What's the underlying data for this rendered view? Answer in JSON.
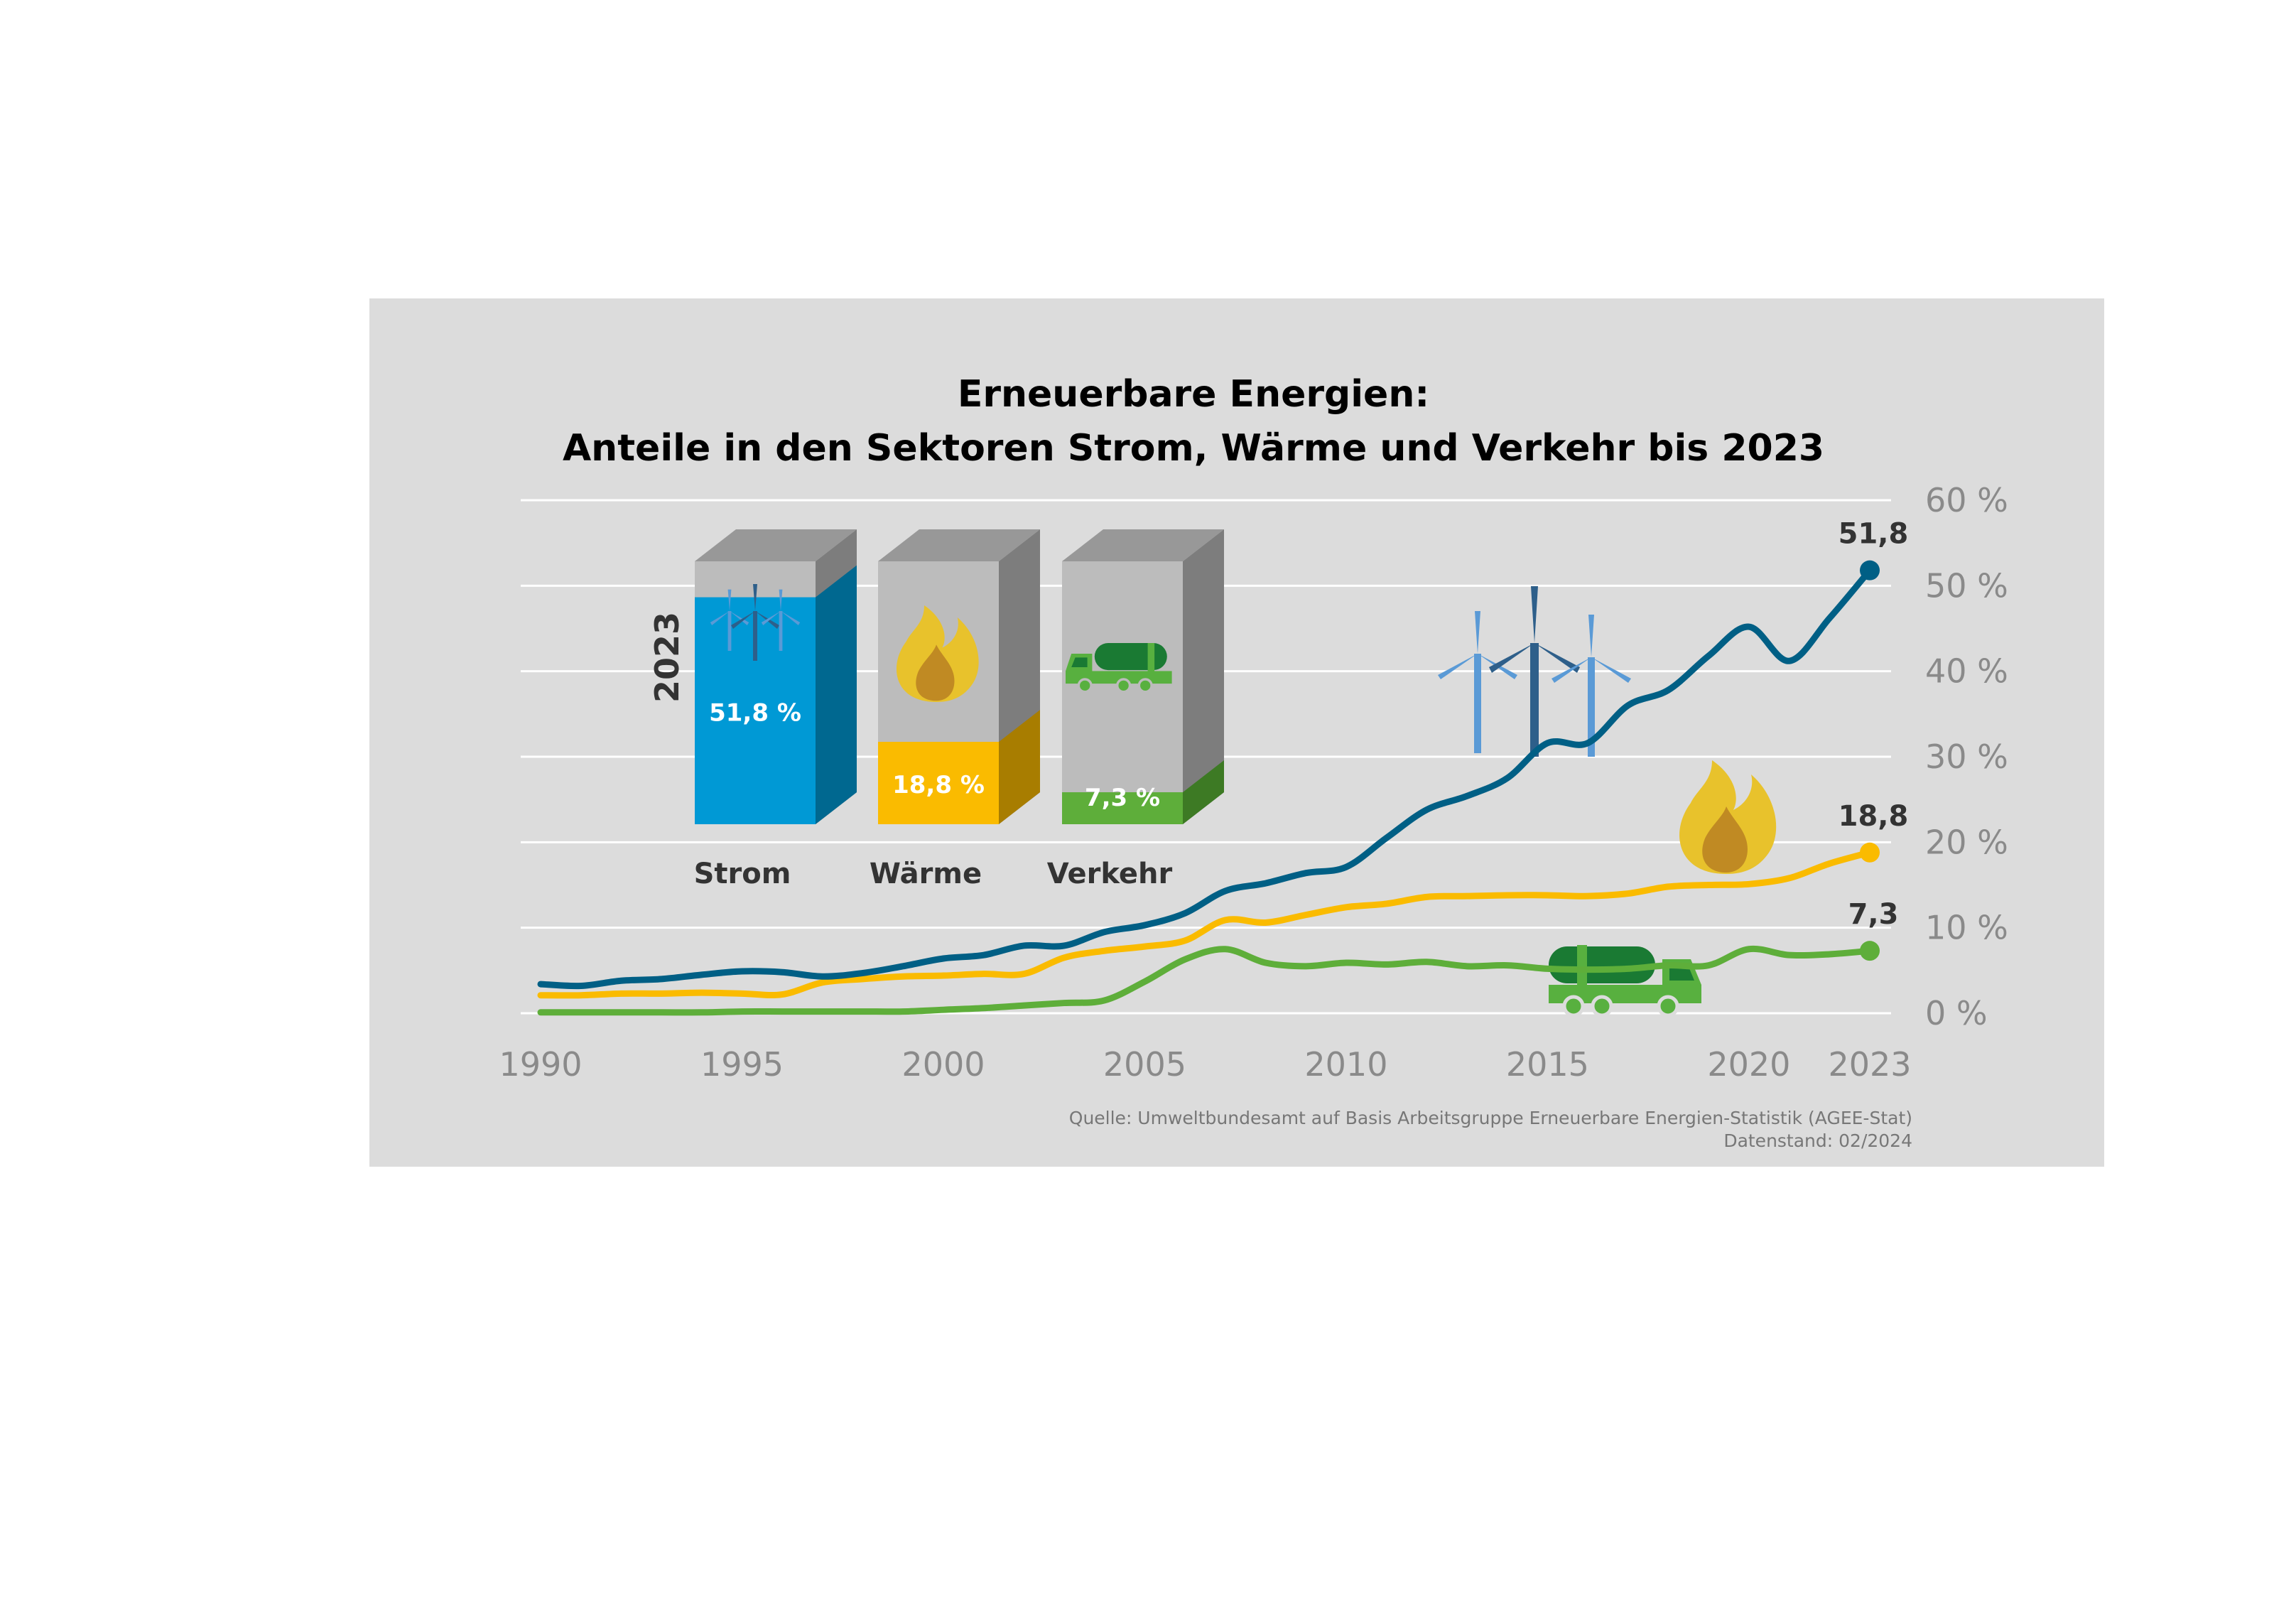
{
  "chart_data": {
    "type": "line",
    "title_line1": "Erneuerbare Energien:",
    "title_line2": "Anteile in den Sektoren Strom, Wärme und Verkehr bis 2023",
    "xlabel": "",
    "ylabel": "",
    "xlim": [
      1990,
      2023
    ],
    "ylim": [
      0,
      60
    ],
    "grid": true,
    "x_ticks": [
      1990,
      1995,
      2000,
      2005,
      2010,
      2015,
      2020,
      2023
    ],
    "y_ticks": [
      0,
      10,
      20,
      30,
      40,
      50,
      60
    ],
    "y_tick_labels": [
      "0 %",
      "10 %",
      "20 %",
      "30 %",
      "40 %",
      "50 %",
      "60 %"
    ],
    "x": [
      1990,
      1991,
      1992,
      1993,
      1994,
      1995,
      1996,
      1997,
      1998,
      1999,
      2000,
      2001,
      2002,
      2003,
      2004,
      2005,
      2006,
      2007,
      2008,
      2009,
      2010,
      2011,
      2012,
      2013,
      2014,
      2015,
      2016,
      2017,
      2018,
      2019,
      2020,
      2021,
      2022,
      2023
    ],
    "series": [
      {
        "key": "strom",
        "color": "#005f85",
        "values": [
          3.4,
          3.2,
          3.8,
          4.0,
          4.5,
          4.9,
          4.8,
          4.3,
          4.7,
          5.5,
          6.4,
          6.8,
          7.9,
          7.9,
          9.5,
          10.3,
          11.7,
          14.3,
          15.2,
          16.4,
          17.1,
          20.5,
          23.8,
          25.4,
          27.5,
          31.6,
          31.6,
          36.0,
          37.8,
          41.8,
          45.2,
          41.2,
          46.2,
          51.8
        ],
        "end_label": "51,8"
      },
      {
        "key": "waerme",
        "color": "#fabb00",
        "values": [
          2.1,
          2.1,
          2.3,
          2.3,
          2.4,
          2.3,
          2.2,
          3.6,
          4.0,
          4.3,
          4.4,
          4.6,
          4.6,
          6.5,
          7.3,
          7.8,
          8.5,
          10.9,
          10.6,
          11.5,
          12.4,
          12.8,
          13.6,
          13.7,
          13.8,
          13.8,
          13.7,
          14.0,
          14.8,
          15.0,
          15.1,
          15.8,
          17.5,
          18.8
        ],
        "end_label": "18,8"
      },
      {
        "key": "verkehr",
        "color": "#5eae3a",
        "values": [
          0.1,
          0.1,
          0.1,
          0.1,
          0.1,
          0.2,
          0.2,
          0.2,
          0.2,
          0.2,
          0.4,
          0.6,
          0.9,
          1.2,
          1.5,
          3.7,
          6.3,
          7.5,
          5.9,
          5.5,
          5.9,
          5.7,
          6.0,
          5.5,
          5.6,
          5.2,
          5.1,
          5.2,
          5.6,
          5.6,
          7.5,
          6.8,
          6.9,
          7.3
        ],
        "end_label": "7,3"
      }
    ],
    "inset_year": "2023",
    "bars": [
      {
        "name": "Strom",
        "value": 51.8,
        "label": "51,8 %",
        "color": "#0099d5",
        "shade": "#006890",
        "icon": "wind-turbine-icon"
      },
      {
        "name": "Wärme",
        "value": 18.8,
        "label": "18,8 %",
        "color": "#fabb00",
        "shade": "#a87d00",
        "icon": "flame-icon"
      },
      {
        "name": "Verkehr",
        "value": 7.3,
        "label": "7,3 %",
        "color": "#5eae3a",
        "shade": "#3d7a24",
        "icon": "tank-truck-icon"
      }
    ],
    "source_line1": "Quelle: Umweltbundesamt auf Basis Arbeitsgruppe Erneuerbare Energien-Statistik (AGEE-Stat)",
    "source_line2": "Datenstand: 02/2024"
  }
}
